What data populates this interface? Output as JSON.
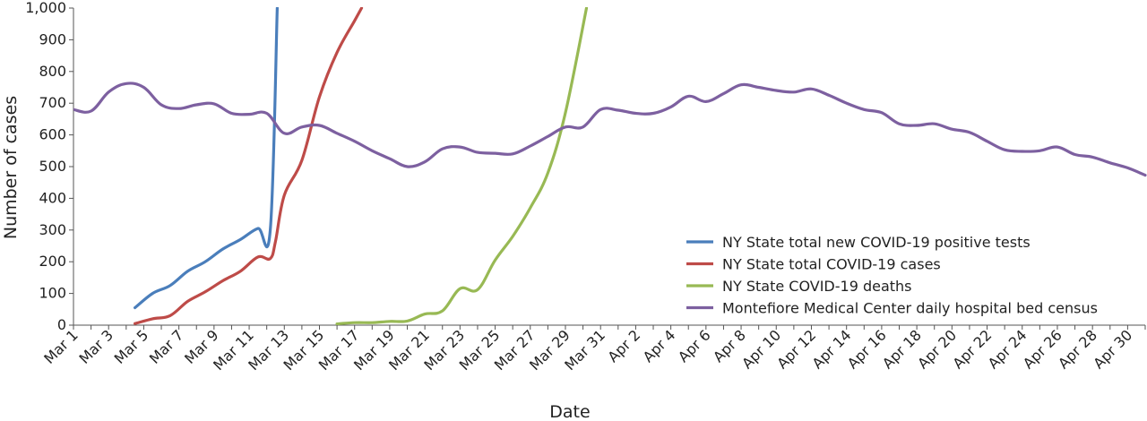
{
  "chart_data": {
    "type": "line",
    "title": "",
    "xlabel": "Date",
    "ylabel": "Number of cases",
    "ylim": [
      0,
      1000
    ],
    "yticks": [
      0,
      100,
      200,
      300,
      400,
      500,
      600,
      700,
      800,
      900,
      1000
    ],
    "ytick_labels": [
      "0",
      "100",
      "200",
      "300",
      "400",
      "500",
      "600",
      "700",
      "800",
      "900",
      "1,000"
    ],
    "x_range_days": [
      1,
      62
    ],
    "xticks": [
      {
        "day": 1,
        "label": "Mar 1"
      },
      {
        "day": 3,
        "label": "Mar 3"
      },
      {
        "day": 5,
        "label": "Mar 5"
      },
      {
        "day": 7,
        "label": "Mar 7"
      },
      {
        "day": 9,
        "label": "Mar 9"
      },
      {
        "day": 11,
        "label": "Mar 11"
      },
      {
        "day": 13,
        "label": "Mar 13"
      },
      {
        "day": 15,
        "label": "Mar 15"
      },
      {
        "day": 17,
        "label": "Mar 17"
      },
      {
        "day": 19,
        "label": "Mar 19"
      },
      {
        "day": 21,
        "label": "Mar 21"
      },
      {
        "day": 23,
        "label": "Mar 23"
      },
      {
        "day": 25,
        "label": "Mar 25"
      },
      {
        "day": 27,
        "label": "Mar 27"
      },
      {
        "day": 29,
        "label": "Mar 29"
      },
      {
        "day": 31,
        "label": "Mar 31"
      },
      {
        "day": 33,
        "label": "Apr 2"
      },
      {
        "day": 35,
        "label": "Apr 4"
      },
      {
        "day": 37,
        "label": "Apr 6"
      },
      {
        "day": 39,
        "label": "Apr 8"
      },
      {
        "day": 41,
        "label": "Apr 10"
      },
      {
        "day": 43,
        "label": "Apr 12"
      },
      {
        "day": 45,
        "label": "Apr 14"
      },
      {
        "day": 47,
        "label": "Apr 16"
      },
      {
        "day": 49,
        "label": "Apr 18"
      },
      {
        "day": 51,
        "label": "Apr 20"
      },
      {
        "day": 53,
        "label": "Apr 22"
      },
      {
        "day": 55,
        "label": "Apr 24"
      },
      {
        "day": 57,
        "label": "Apr 26"
      },
      {
        "day": 59,
        "label": "Apr 28"
      },
      {
        "day": 61,
        "label": "Apr 30"
      }
    ],
    "legend_position": "bottom-right",
    "series": [
      {
        "name": "NY State total new COVID-19 positive tests",
        "color": "#4a7ebb",
        "x": [
          4.5,
          5.5,
          6.5,
          7.5,
          8.5,
          9.5,
          10.5,
          11.5,
          12.2,
          12.6
        ],
        "y": [
          55,
          100,
          125,
          170,
          200,
          240,
          270,
          305,
          300,
          1000
        ]
      },
      {
        "name": "NY State total COVID-19 cases",
        "color": "#be4b48",
        "x": [
          4.5,
          5.5,
          6.5,
          7.5,
          8.5,
          9.5,
          10.5,
          11.5,
          12.2,
          12.5,
          13,
          14,
          15,
          16,
          17,
          17.4
        ],
        "y": [
          5,
          20,
          30,
          75,
          105,
          140,
          170,
          215,
          210,
          265,
          410,
          520,
          720,
          860,
          960,
          1000
        ]
      },
      {
        "name": "NY State COVID-19 deaths",
        "color": "#98b954",
        "x": [
          16,
          17,
          18,
          19,
          20,
          21,
          22,
          23,
          24,
          25,
          26,
          27,
          28,
          29,
          30.2
        ],
        "y": [
          4,
          8,
          8,
          12,
          13,
          35,
          45,
          115,
          112,
          205,
          280,
          370,
          480,
          670,
          1000
        ]
      },
      {
        "name": "Montefiore Medical Center daily hospital bed census",
        "color": "#7d60a0",
        "x": [
          1,
          2,
          3,
          4,
          5,
          6,
          7,
          8,
          9,
          10,
          11,
          12,
          13,
          14,
          15,
          16,
          17,
          18,
          19,
          20,
          21,
          22,
          23,
          24,
          25,
          26,
          27,
          28,
          29,
          30,
          31,
          32,
          33,
          34,
          35,
          36,
          37,
          38,
          39,
          40,
          41,
          42,
          43,
          44,
          45,
          46,
          47,
          48,
          49,
          50,
          51,
          52,
          53,
          54,
          55,
          56,
          57,
          58,
          59,
          60,
          61,
          62
        ],
        "y": [
          680,
          675,
          735,
          762,
          750,
          695,
          683,
          695,
          698,
          668,
          665,
          668,
          605,
          625,
          630,
          605,
          580,
          550,
          525,
          500,
          515,
          556,
          562,
          545,
          542,
          540,
          565,
          595,
          625,
          625,
          680,
          678,
          668,
          668,
          688,
          722,
          705,
          730,
          758,
          750,
          740,
          735,
          745,
          725,
          700,
          680,
          670,
          635,
          630,
          635,
          618,
          608,
          580,
          553,
          548,
          550,
          562,
          538,
          530,
          512,
          496,
          473
        ]
      }
    ]
  }
}
